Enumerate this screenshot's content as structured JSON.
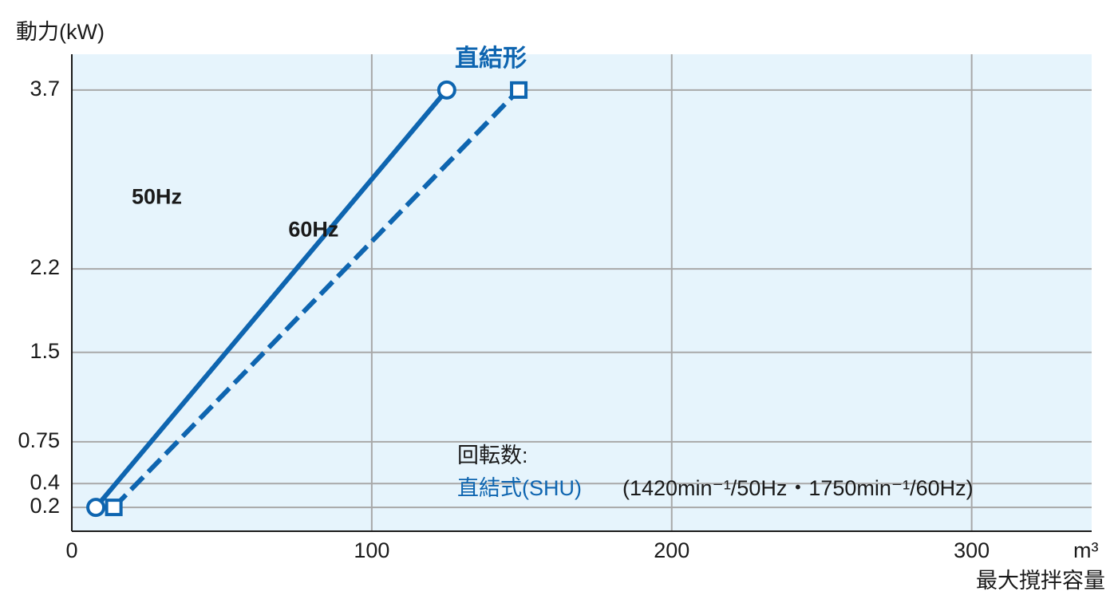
{
  "chart_data": {
    "type": "line",
    "y_label": "動力(kW)",
    "x_label": "最大撹拌容量",
    "x_unit": "m³",
    "title": "直結形",
    "speed_label": "回転数:",
    "model_label": "直結式(SHU)",
    "speed_spec": "(1420min⁻¹/50Hz・1750min⁻¹/60Hz)",
    "series": [
      {
        "name": "50Hz",
        "color": "#0e65b0",
        "marker": "circle",
        "dashed": false,
        "x": [
          8,
          125
        ],
        "values": [
          0.2,
          3.7
        ]
      },
      {
        "name": "60Hz",
        "color": "#0e65b0",
        "marker": "square",
        "dashed": true,
        "x": [
          14,
          149
        ],
        "values": [
          0.2,
          3.7
        ]
      }
    ],
    "xlim": [
      0,
      340
    ],
    "xticks": [
      0,
      100,
      200,
      300
    ],
    "ylim": [
      0,
      4.0
    ],
    "yticks": [
      0.2,
      0.4,
      0.75,
      1.5,
      2.2,
      3.7
    ],
    "grid": true
  }
}
